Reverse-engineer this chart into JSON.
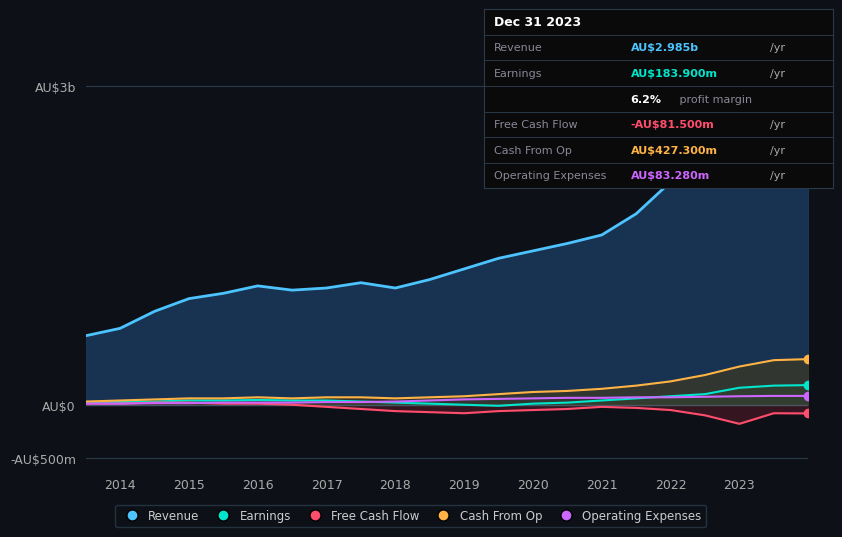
{
  "bg_color": "#0d1117",
  "plot_bg_color": "#0d1117",
  "years": [
    2013.5,
    2014,
    2014.5,
    2015,
    2015.5,
    2016,
    2016.5,
    2017,
    2017.5,
    2018,
    2018.5,
    2019,
    2019.5,
    2020,
    2020.5,
    2021,
    2021.5,
    2022,
    2022.5,
    2023,
    2023.5,
    2024
  ],
  "revenue": [
    0.65,
    0.72,
    0.88,
    1.0,
    1.05,
    1.12,
    1.08,
    1.1,
    1.15,
    1.1,
    1.18,
    1.28,
    1.38,
    1.45,
    1.52,
    1.6,
    1.8,
    2.1,
    2.35,
    2.7,
    2.98,
    3.05
  ],
  "earnings": [
    0.02,
    0.025,
    0.03,
    0.04,
    0.04,
    0.045,
    0.04,
    0.04,
    0.03,
    0.02,
    0.01,
    0.0,
    -0.01,
    0.01,
    0.02,
    0.04,
    0.06,
    0.08,
    0.1,
    0.16,
    0.18,
    0.185
  ],
  "free_cash_flow": [
    0.01,
    0.01,
    0.02,
    0.02,
    0.01,
    0.01,
    0.0,
    -0.02,
    -0.04,
    -0.06,
    -0.07,
    -0.08,
    -0.06,
    -0.05,
    -0.04,
    -0.02,
    -0.03,
    -0.05,
    -0.1,
    -0.18,
    -0.08,
    -0.082
  ],
  "cash_from_op": [
    0.03,
    0.04,
    0.05,
    0.06,
    0.06,
    0.07,
    0.06,
    0.07,
    0.07,
    0.06,
    0.07,
    0.08,
    0.1,
    0.12,
    0.13,
    0.15,
    0.18,
    0.22,
    0.28,
    0.36,
    0.42,
    0.43
  ],
  "operating_expenses": [
    0.01,
    0.01,
    0.015,
    0.015,
    0.02,
    0.02,
    0.02,
    0.025,
    0.025,
    0.03,
    0.04,
    0.05,
    0.055,
    0.06,
    0.065,
    0.065,
    0.07,
    0.07,
    0.075,
    0.08,
    0.083,
    0.083
  ],
  "revenue_color": "#4dc3ff",
  "earnings_color": "#00e5cc",
  "free_cash_flow_color": "#ff4d6d",
  "cash_from_op_color": "#ffb347",
  "operating_expenses_color": "#cc66ff",
  "fill_revenue_color": "#1a3a5c",
  "fill_earnings_color": "#1a5550",
  "fill_fcf_color": "#5c1a2a",
  "fill_cashop_color": "#4a3a10",
  "ylabel_top": "AU$3b",
  "ylabel_zero": "AU$0",
  "ylabel_neg": "-AU$500m",
  "ylim_top": 3.2,
  "ylim_bottom": -0.6,
  "ytick_top": 3.0,
  "ytick_zero": 0.0,
  "ytick_neg": -0.5,
  "xticks": [
    2014,
    2015,
    2016,
    2017,
    2018,
    2019,
    2020,
    2021,
    2022,
    2023
  ],
  "grid_color": "#2a3a4a",
  "info_box": {
    "title": "Dec 31 2023",
    "revenue_label": "Revenue",
    "revenue_value": "AU$2.985b",
    "revenue_unit": "/yr",
    "earnings_label": "Earnings",
    "earnings_value": "AU$183.900m",
    "earnings_unit": "/yr",
    "margin_value": "6.2%",
    "margin_text": " profit margin",
    "fcf_label": "Free Cash Flow",
    "fcf_value": "-AU$81.500m",
    "fcf_unit": "/yr",
    "cashop_label": "Cash From Op",
    "cashop_value": "AU$427.300m",
    "cashop_unit": "/yr",
    "opex_label": "Operating Expenses",
    "opex_value": "AU$83.280m",
    "opex_unit": "/yr",
    "bg_color": "#0a0a0a",
    "border_color": "#2a3a4a",
    "title_color": "#ffffff",
    "label_color": "#888899",
    "value_revenue_color": "#4dc3ff",
    "value_earnings_color": "#00e5cc",
    "value_margin_color": "#ffffff",
    "value_fcf_color": "#ff4d6d",
    "value_cashop_color": "#ffb347",
    "value_opex_color": "#cc66ff",
    "unit_color": "#aaaaaa"
  },
  "legend_items": [
    "Revenue",
    "Earnings",
    "Free Cash Flow",
    "Cash From Op",
    "Operating Expenses"
  ],
  "legend_colors": [
    "#4dc3ff",
    "#00e5cc",
    "#ff4d6d",
    "#ffb347",
    "#cc66ff"
  ]
}
